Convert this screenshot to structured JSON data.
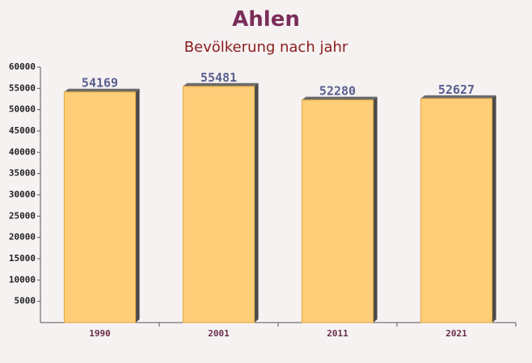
{
  "chart_data": {
    "type": "bar",
    "title": "Ahlen",
    "subtitle": "Bevölkerung nach jahr",
    "categories": [
      "1990",
      "2001",
      "2011",
      "2021"
    ],
    "values": [
      54169,
      55481,
      52280,
      52627
    ],
    "color": "#fec96a",
    "ylim": [
      0,
      60000
    ],
    "yticks": [
      5000,
      10000,
      15000,
      20000,
      25000,
      30000,
      35000,
      40000,
      45000,
      50000,
      55000,
      60000
    ]
  }
}
